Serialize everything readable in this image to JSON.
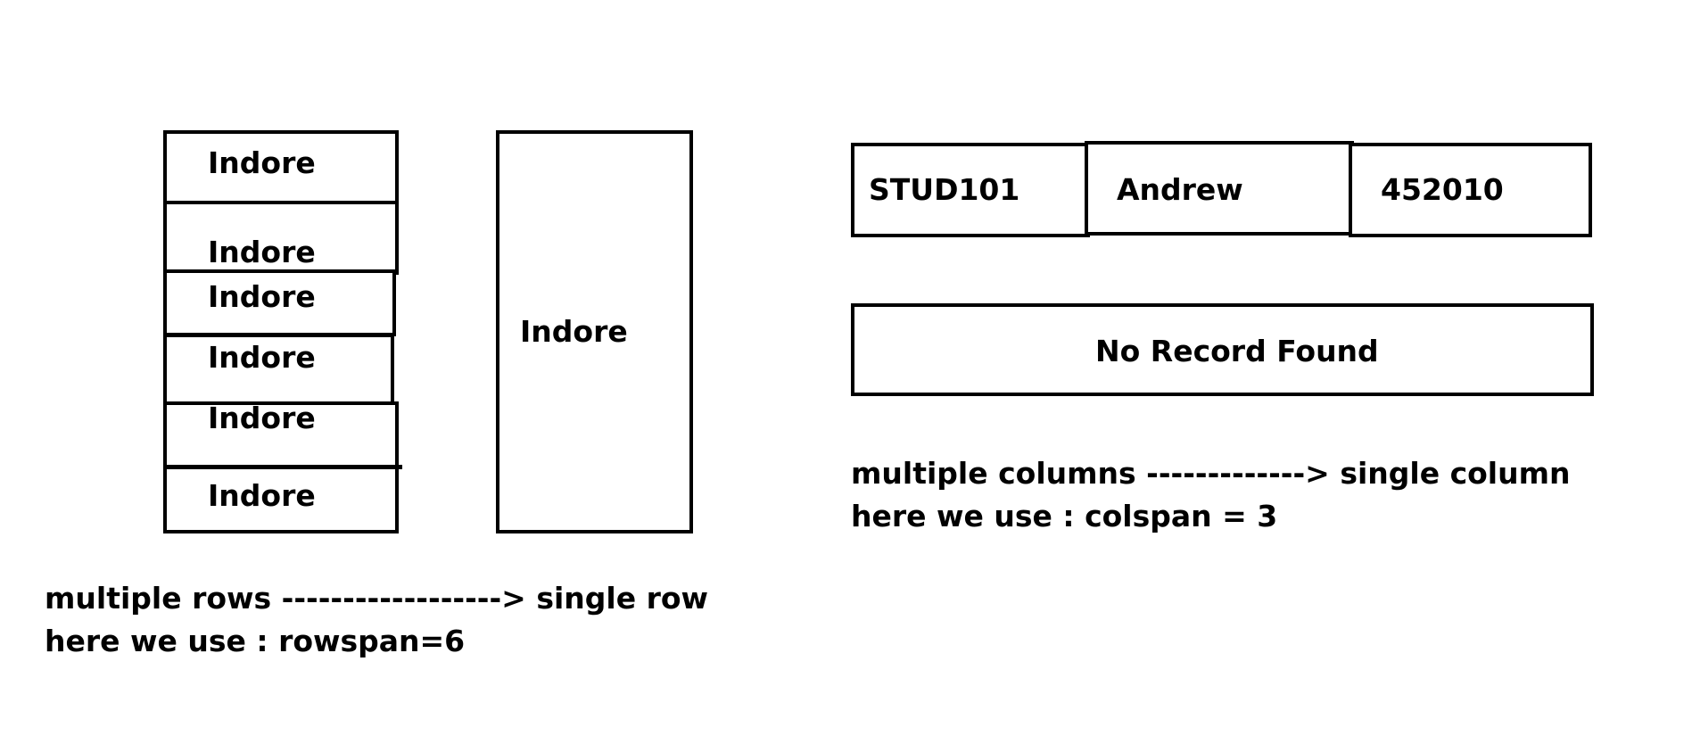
{
  "rowspan_diagram": {
    "cells": [
      "Indore",
      "Indore",
      "Indore",
      "Indore",
      "Indore",
      "Indore"
    ],
    "merged_cell": "Indore",
    "note_line1": "multiple rows ------------------> single row",
    "note_line2": "here we use : rowspan=6"
  },
  "colspan_diagram": {
    "cells": [
      "STUD101",
      "Andrew",
      "452010"
    ],
    "merged_cell": "No Record Found",
    "note_line1": "multiple columns   -------------> single column",
    "note_line2": "here we use : colspan = 3"
  }
}
